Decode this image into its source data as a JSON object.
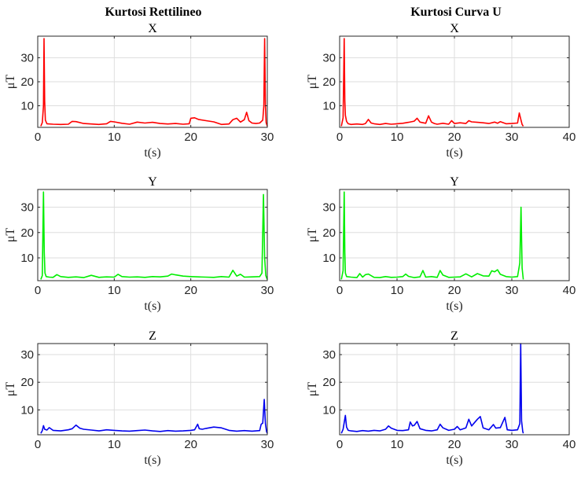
{
  "column_titles": [
    "Kurtosi Rettilineo",
    "Kurtosi Curva U"
  ],
  "colors": {
    "X": "#ff0000",
    "Y": "#00ee00",
    "Z": "#0000ee"
  },
  "chart_data": [
    {
      "type": "line",
      "title": "X",
      "xlabel": "t(s)",
      "ylabel": "μT",
      "xlim": [
        0,
        30
      ],
      "ylim": [
        1,
        39
      ],
      "xticks": [
        0,
        10,
        20,
        30
      ],
      "yticks": [
        10,
        20,
        30
      ],
      "grid": true,
      "color": "#ff0000",
      "x": [
        0.4,
        0.6,
        0.75,
        0.82,
        0.9,
        1.0,
        1.2,
        2,
        3,
        4,
        4.5,
        5,
        6,
        7,
        8,
        9,
        9.5,
        10,
        11,
        12,
        13,
        14,
        15,
        16,
        17,
        18,
        19,
        19.8,
        20,
        20.5,
        21,
        22,
        23,
        24,
        25,
        25.5,
        26,
        26.5,
        27,
        27.3,
        27.6,
        28,
        28.5,
        29,
        29.4,
        29.55,
        29.65,
        29.75,
        29.85,
        30
      ],
      "y": [
        1.5,
        3,
        10,
        38,
        12,
        4,
        2.5,
        2.3,
        2.2,
        2.3,
        3.5,
        3.4,
        2.6,
        2.4,
        2.2,
        2.5,
        3.5,
        3.3,
        2.7,
        2.3,
        3.2,
        2.8,
        3.1,
        2.6,
        2.4,
        2.6,
        2.3,
        2.5,
        4.8,
        5,
        4.3,
        3.8,
        3.3,
        2.2,
        2.4,
        4.2,
        4.8,
        3.2,
        4.2,
        7.3,
        3.8,
        2.8,
        2.6,
        2.8,
        4,
        10,
        38,
        10,
        3,
        1.5
      ]
    },
    {
      "type": "line",
      "title": "X",
      "xlabel": "t(s)",
      "ylabel": "μT",
      "xlim": [
        0,
        40
      ],
      "ylim": [
        1,
        39
      ],
      "xticks": [
        0,
        10,
        20,
        30,
        40
      ],
      "yticks": [
        10,
        20,
        30
      ],
      "grid": true,
      "color": "#ff0000",
      "x": [
        0.3,
        0.6,
        0.8,
        0.9,
        1.0,
        1.2,
        1.5,
        2,
        3,
        4,
        4.5,
        5,
        5.5,
        6,
        7,
        8,
        9,
        10,
        11,
        12,
        13,
        13.5,
        14,
        15,
        15.5,
        16,
        16.5,
        17,
        18,
        19,
        19.5,
        20,
        21,
        22,
        22.5,
        23,
        24,
        25,
        26,
        27,
        27.5,
        28,
        29,
        30,
        31,
        31.3,
        31.6,
        31.8,
        32
      ],
      "y": [
        1.5,
        5,
        38,
        12,
        6,
        3.5,
        2.5,
        2.2,
        2.4,
        2.2,
        2.6,
        4.3,
        2.8,
        2.5,
        2.2,
        2.6,
        2.3,
        2.5,
        2.7,
        3.1,
        3.6,
        4.8,
        3.2,
        2.7,
        5.8,
        3.2,
        2.6,
        2.3,
        2.7,
        2.3,
        3.8,
        2.6,
        2.9,
        2.6,
        3.8,
        3.3,
        3.1,
        2.9,
        2.6,
        3.2,
        2.7,
        3.4,
        2.5,
        2.6,
        2.8,
        7,
        4,
        2.2,
        1.5
      ]
    },
    {
      "type": "line",
      "title": "Y",
      "xlabel": "t(s)",
      "ylabel": "μT",
      "xlim": [
        0,
        30
      ],
      "ylim": [
        1,
        37
      ],
      "xticks": [
        0,
        10,
        20,
        30
      ],
      "yticks": [
        10,
        20,
        30
      ],
      "grid": true,
      "color": "#00ee00",
      "x": [
        0.4,
        0.6,
        0.75,
        0.85,
        0.95,
        1.1,
        1.5,
        2,
        2.5,
        3,
        4,
        5,
        6,
        7,
        8,
        9,
        10,
        10.5,
        11,
        12,
        13,
        14,
        15,
        16,
        17,
        17.5,
        18,
        19,
        20,
        21,
        22,
        23,
        24,
        25,
        25.5,
        26,
        26.5,
        27,
        28,
        29,
        29.3,
        29.5,
        29.65,
        29.8,
        30
      ],
      "y": [
        1.5,
        3,
        36,
        12,
        4,
        2.6,
        2.4,
        2.3,
        3.4,
        2.6,
        2.3,
        2.5,
        2.2,
        3.1,
        2.3,
        2.5,
        2.4,
        3.5,
        2.6,
        2.4,
        2.5,
        2.3,
        2.6,
        2.5,
        2.8,
        3.6,
        3.3,
        2.8,
        2.6,
        2.5,
        2.4,
        2.3,
        2.6,
        2.4,
        5.1,
        2.8,
        3.5,
        2.4,
        2.5,
        2.6,
        4,
        35,
        10,
        3,
        1.5
      ]
    },
    {
      "type": "line",
      "title": "Y",
      "xlabel": "t(s)",
      "ylabel": "μT",
      "xlim": [
        0,
        40
      ],
      "ylim": [
        1,
        37
      ],
      "xticks": [
        0,
        10,
        20,
        30,
        40
      ],
      "yticks": [
        10,
        20,
        30
      ],
      "grid": true,
      "color": "#00ee00",
      "x": [
        0.3,
        0.6,
        0.8,
        0.9,
        1.0,
        1.2,
        2,
        3,
        3.5,
        4,
        4.5,
        5,
        6,
        7,
        8,
        9,
        10,
        11,
        11.5,
        12,
        13,
        14,
        14.5,
        15,
        16,
        17,
        17.5,
        18,
        19,
        20,
        21,
        22,
        23,
        24,
        25,
        26,
        26.5,
        27,
        27.5,
        28,
        29,
        30,
        31,
        31.4,
        31.6,
        31.8,
        32
      ],
      "y": [
        1.5,
        5,
        36,
        12,
        4,
        2.6,
        2.4,
        2.2,
        3.8,
        2.4,
        3.4,
        3.6,
        2.3,
        2.2,
        2.6,
        2.3,
        2.4,
        2.6,
        3.6,
        2.7,
        2.2,
        2.5,
        5,
        2.4,
        2.6,
        2.3,
        5,
        3.2,
        2.3,
        2.4,
        2.5,
        3.7,
        2.5,
        3.8,
        2.9,
        2.8,
        4.9,
        4.5,
        5.3,
        3.5,
        2.6,
        2.4,
        2.6,
        8,
        30,
        6,
        1.5
      ]
    },
    {
      "type": "line",
      "title": "Z",
      "xlabel": "t(s)",
      "ylabel": "μT",
      "xlim": [
        0,
        30
      ],
      "ylim": [
        1,
        34
      ],
      "xticks": [
        0,
        10,
        20,
        30
      ],
      "yticks": [
        10,
        20,
        30
      ],
      "grid": true,
      "color": "#0000ee",
      "x": [
        0.4,
        0.6,
        0.75,
        0.9,
        1.2,
        1.5,
        2,
        3,
        4,
        4.5,
        5,
        5.5,
        6,
        7,
        8,
        9,
        10,
        11,
        12,
        13,
        14,
        15,
        16,
        17,
        18,
        19,
        20,
        20.5,
        20.9,
        21.1,
        21.5,
        22,
        23,
        24,
        25,
        26,
        27,
        28,
        29,
        29.2,
        29.4,
        29.6,
        29.75,
        29.9,
        30
      ],
      "y": [
        1.5,
        2.5,
        4.3,
        3,
        2.7,
        3.6,
        2.6,
        2.4,
        2.8,
        3.2,
        4.5,
        3.4,
        3,
        2.7,
        2.4,
        2.8,
        2.6,
        2.4,
        2.3,
        2.5,
        2.7,
        2.4,
        2.2,
        2.5,
        2.3,
        2.4,
        2.6,
        2.8,
        4.8,
        3.2,
        3,
        3.3,
        3.8,
        3.5,
        2.6,
        2.3,
        2.5,
        2.3,
        2.5,
        4.8,
        5.2,
        13.8,
        5,
        2.2,
        1.5
      ]
    },
    {
      "type": "line",
      "title": "Z",
      "xlabel": "t(s)",
      "ylabel": "μT",
      "xlim": [
        0,
        40
      ],
      "ylim": [
        1,
        34
      ],
      "xticks": [
        0,
        10,
        20,
        30,
        40
      ],
      "yticks": [
        10,
        20,
        30
      ],
      "grid": true,
      "color": "#0000ee",
      "x": [
        0.3,
        0.6,
        1.0,
        1.2,
        1.5,
        2,
        3,
        4,
        5,
        6,
        7,
        8,
        8.5,
        9,
        10,
        11,
        12,
        12.3,
        12.7,
        13,
        13.5,
        14,
        15,
        16,
        17,
        17.5,
        18,
        19,
        20,
        20.5,
        21,
        22,
        22.5,
        23,
        24,
        24.5,
        25,
        26,
        26.8,
        27.2,
        28,
        28.8,
        29.2,
        30,
        31,
        31.4,
        31.55,
        31.7,
        31.9,
        32
      ],
      "y": [
        1.5,
        3,
        8,
        3.8,
        2.6,
        2.4,
        2.2,
        2.5,
        2.3,
        2.6,
        2.4,
        3,
        4.2,
        3.4,
        2.6,
        2.5,
        2.8,
        5.6,
        4.2,
        4.4,
        5.8,
        3.2,
        2.6,
        2.4,
        2.8,
        4.8,
        3.5,
        2.6,
        3,
        4,
        2.8,
        3.5,
        6.6,
        4.2,
        6.6,
        7.6,
        3.5,
        2.8,
        4.7,
        3.4,
        3.6,
        7.3,
        2.8,
        2.6,
        2.8,
        5,
        34,
        6,
        2.2,
        1.5
      ]
    }
  ]
}
